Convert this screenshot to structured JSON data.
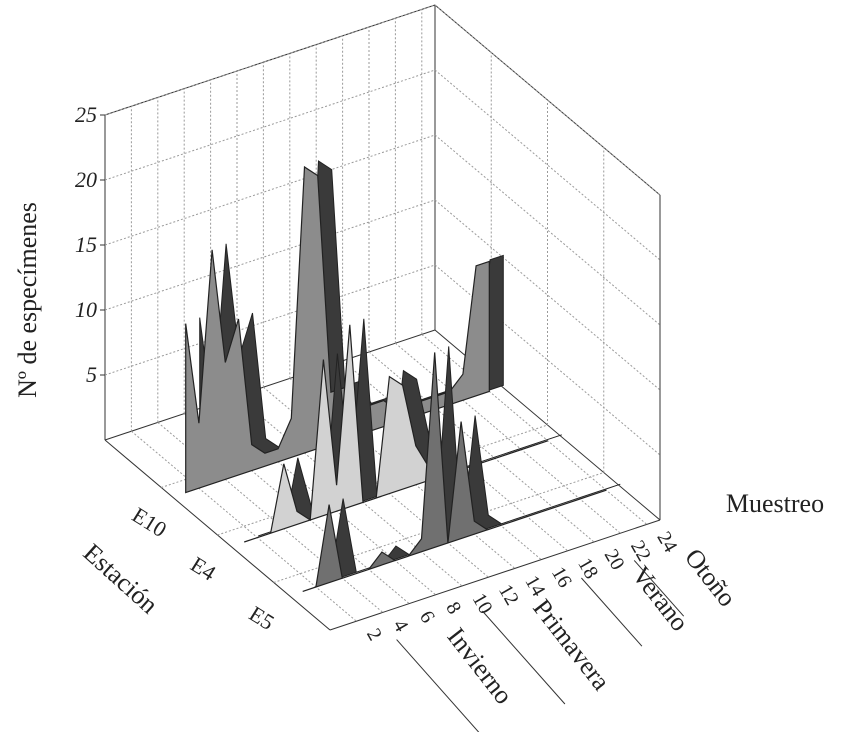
{
  "chart_data": {
    "type": "ribbon3d",
    "z_label": "Nº de especímenes",
    "x_label": "Muestreo",
    "y_label": "Estación",
    "x": [
      1,
      2,
      3,
      4,
      5,
      6,
      7,
      8,
      9,
      10,
      11,
      12,
      13,
      14,
      15,
      16,
      17,
      18,
      19,
      20,
      21,
      22,
      23,
      24
    ],
    "xlim": [
      0,
      25
    ],
    "xticks": [
      2,
      4,
      6,
      8,
      10,
      12,
      14,
      16,
      18,
      20,
      22,
      24
    ],
    "zlim": [
      0,
      25
    ],
    "zticks": [
      5,
      10,
      15,
      20,
      25
    ],
    "grid": true,
    "series": [
      {
        "name": "E10",
        "color": "#8c8c8c",
        "values": [
          13,
          5,
          18,
          9,
          12,
          2,
          1,
          1,
          3,
          22,
          21,
          4,
          4,
          2,
          2,
          2,
          1,
          1,
          1,
          1,
          1,
          2,
          10,
          10
        ]
      },
      {
        "name": "E4",
        "color": "#d2d2d2",
        "values": [
          0,
          0,
          0,
          5,
          1,
          0,
          12,
          2,
          14,
          0,
          0,
          9,
          8,
          3,
          1,
          0,
          0,
          0,
          0,
          0,
          0,
          0,
          0,
          0
        ]
      },
      {
        "name": "E5",
        "color": "#707070",
        "values": [
          0,
          0,
          6,
          0,
          0,
          0,
          1,
          0,
          0,
          1,
          15,
          0,
          9,
          1,
          0,
          0,
          0,
          0,
          0,
          0,
          0,
          0,
          0,
          0
        ]
      }
    ],
    "season_labels": [
      "Invierno",
      "Primavera",
      "Verano",
      "Otoño"
    ]
  }
}
